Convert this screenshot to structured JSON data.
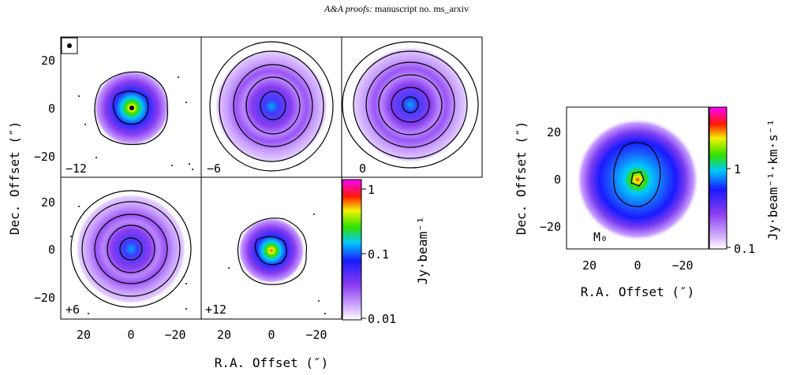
{
  "header": {
    "journal": "A&A proofs:",
    "manuscript": "manuscript no. ms_arxiv"
  },
  "left_figure": {
    "panel_labels": [
      "−12",
      "−6",
      "0",
      "+6",
      "+12"
    ],
    "x_ticks": [
      "20",
      "0",
      "−20"
    ],
    "y_ticks": [
      "20",
      "0",
      "−20"
    ],
    "xlabel": "R.A. Offset (″)",
    "ylabel": "Dec. Offset (″)",
    "colorbar_ticks": [
      "1",
      "0.1",
      "0.01"
    ],
    "colorbar_label": "Jy·beam⁻¹"
  },
  "right_figure": {
    "panel_label": "M₀",
    "x_ticks": [
      "20",
      "0",
      "−20"
    ],
    "y_ticks": [
      "20",
      "0",
      "−20"
    ],
    "xlabel": "R.A. Offset (″)",
    "ylabel": "Dec. Offset (″)",
    "colorbar_ticks": [
      "1",
      "0.1"
    ],
    "colorbar_label": "Jy·beam⁻¹·km·s⁻¹"
  },
  "colors": {
    "violet": "#c79cff",
    "purple": "#8a3cf0",
    "blue": "#1a1aff",
    "cyan": "#00c8ff",
    "green": "#30e000",
    "yellow": "#f2f200",
    "red": "#ff1a00",
    "magenta": "#ff00ff"
  }
}
